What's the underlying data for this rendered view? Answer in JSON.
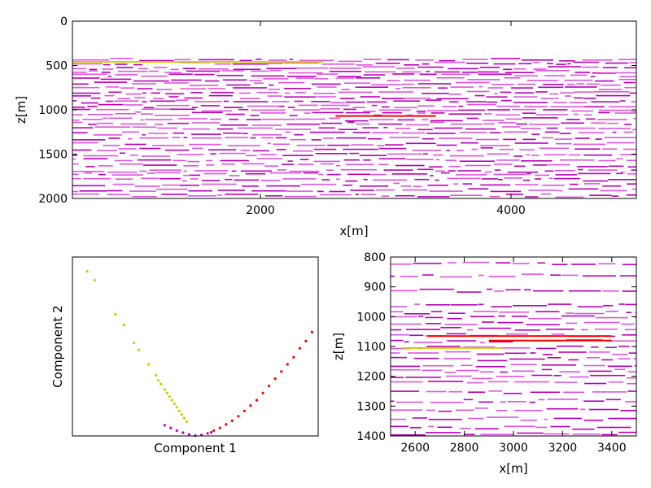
{
  "chart_data": [
    {
      "type": "heatmap",
      "title": "",
      "xlabel": "x[m]",
      "ylabel": "z[m]",
      "xlim": [
        500,
        5000
      ],
      "ylim": [
        2000,
        0
      ],
      "xticks": [
        "2000",
        "4000"
      ],
      "xtick_values": [
        2000,
        4000
      ],
      "yticks": [
        "0",
        "500",
        "1000",
        "1500",
        "2000"
      ],
      "ytick_values": [
        0,
        500,
        1000,
        1500,
        2000
      ],
      "colors": {
        "background": "#ffffff",
        "cluster_a": "#b800b8",
        "cluster_b": "#dd55dd",
        "cluster_c": "#cccc00",
        "cluster_d": "#ff0000"
      },
      "reflector_bands_z": [
        430,
        470,
        520,
        560,
        600,
        650,
        700,
        750,
        800,
        850,
        900,
        950,
        1000,
        1040,
        1100,
        1150,
        1200,
        1260,
        1320,
        1380,
        1440,
        1500,
        1560,
        1620,
        1680,
        1720,
        1780,
        1840,
        1900,
        1960
      ],
      "highlights": [
        {
          "x0": 500,
          "x1": 2500,
          "z": 460,
          "color": "#cccc00"
        },
        {
          "x0": 2600,
          "x1": 3400,
          "z": 1070,
          "color": "#ff0000"
        }
      ]
    },
    {
      "type": "scatter",
      "title": "",
      "xlabel": "Component 1",
      "ylabel": "Component 2",
      "xlim": [
        -1,
        1
      ],
      "ylim": [
        0,
        1
      ],
      "series": [
        {
          "color": "#cccc00",
          "points": [
            [
              -0.88,
              0.92
            ],
            [
              -0.82,
              0.87
            ],
            [
              -0.65,
              0.68
            ],
            [
              -0.58,
              0.62
            ],
            [
              -0.5,
              0.52
            ],
            [
              -0.46,
              0.48
            ],
            [
              -0.38,
              0.4
            ],
            [
              -0.32,
              0.34
            ],
            [
              -0.3,
              0.31
            ],
            [
              -0.28,
              0.29
            ],
            [
              -0.25,
              0.26
            ],
            [
              -0.23,
              0.24
            ],
            [
              -0.21,
              0.22
            ],
            [
              -0.19,
              0.2
            ],
            [
              -0.17,
              0.18
            ],
            [
              -0.15,
              0.16
            ],
            [
              -0.13,
              0.14
            ],
            [
              -0.11,
              0.12
            ],
            [
              -0.09,
              0.1
            ],
            [
              -0.07,
              0.08
            ]
          ]
        },
        {
          "color": "#b800b8",
          "points": [
            [
              -0.25,
              0.06
            ],
            [
              -0.2,
              0.045
            ],
            [
              -0.15,
              0.03
            ],
            [
              -0.1,
              0.018
            ],
            [
              -0.05,
              0.008
            ],
            [
              0.0,
              0.002
            ],
            [
              0.05,
              0.006
            ],
            [
              0.1,
              0.014
            ],
            [
              0.13,
              0.02
            ]
          ]
        },
        {
          "color": "#ff0000",
          "points": [
            [
              0.15,
              0.03
            ],
            [
              0.2,
              0.045
            ],
            [
              0.25,
              0.065
            ],
            [
              0.3,
              0.085
            ],
            [
              0.35,
              0.11
            ],
            [
              0.4,
              0.14
            ],
            [
              0.45,
              0.17
            ],
            [
              0.5,
              0.2
            ],
            [
              0.55,
              0.24
            ],
            [
              0.6,
              0.28
            ],
            [
              0.65,
              0.32
            ],
            [
              0.7,
              0.36
            ],
            [
              0.75,
              0.4
            ],
            [
              0.8,
              0.44
            ],
            [
              0.85,
              0.49
            ],
            [
              0.9,
              0.53
            ],
            [
              0.95,
              0.58
            ]
          ]
        }
      ]
    },
    {
      "type": "heatmap",
      "title": "",
      "xlabel": "x[m]",
      "ylabel": "z[m]",
      "xlim": [
        2500,
        3500
      ],
      "ylim": [
        1400,
        800
      ],
      "xticks": [
        "2600",
        "2800",
        "3000",
        "3200",
        "3400"
      ],
      "xtick_values": [
        2600,
        2800,
        3000,
        3200,
        3400
      ],
      "yticks": [
        "800",
        "900",
        "1000",
        "1100",
        "1200",
        "1300",
        "1400"
      ],
      "ytick_values": [
        800,
        900,
        1000,
        1100,
        1200,
        1300,
        1400
      ],
      "colors": {
        "background": "#ffffff",
        "cluster_a": "#b800b8",
        "cluster_b": "#dd55dd",
        "cluster_c": "#cccc00",
        "cluster_d": "#ff0000"
      },
      "reflector_bands_z": [
        820,
        860,
        910,
        960,
        985,
        1000,
        1020,
        1040,
        1060,
        1080,
        1100,
        1120,
        1140,
        1160,
        1180,
        1200,
        1220,
        1250,
        1280,
        1310,
        1340,
        1370,
        1390
      ],
      "highlights": [
        {
          "x0": 2650,
          "x1": 3400,
          "z": 1065,
          "color": "#ff0000"
        },
        {
          "x0": 2550,
          "x1": 2950,
          "z": 1105,
          "color": "#cccc00"
        },
        {
          "x0": 2900,
          "x1": 3400,
          "z": 1080,
          "color": "#ff0000"
        }
      ]
    }
  ]
}
